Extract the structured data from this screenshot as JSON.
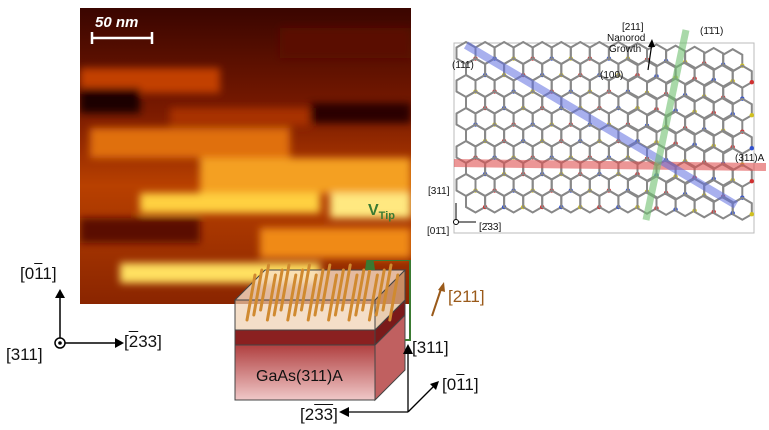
{
  "stm_image": {
    "scale_bar": "50 nm"
  },
  "lattice": {
    "growth_dir": "[211]",
    "growth_text_1": "Nanorod",
    "growth_text_2": "Growth",
    "plane_111": "(111)",
    "plane_1b1b1": "(1̄1̄1)",
    "plane_100": "(100)",
    "plane_311A": "(311)A",
    "axis_311": "[311]",
    "axis_233": "[2̄33]",
    "axis_011": "[01̄1]"
  },
  "left_axes": {
    "up": "[0",
    "up_bar": "1",
    "up_end": "1]",
    "right": "[",
    "right_bar": "2",
    "right_end": "33]",
    "out": "[311]"
  },
  "block": {
    "substrate": "GaAs(311)A",
    "vtip": "V",
    "vtip_sub": "Tip",
    "dir_211": "[211]",
    "axis_311": "[311]",
    "axis_011": "[0",
    "axis_011_bar": "1",
    "axis_011_end": "1]",
    "axis_233": "[2",
    "axis_233_bar": "33",
    "axis_233_end": "]"
  },
  "colors": {
    "growth_arrow": "#9a5a1a",
    "vtip_green": "#3a7a32"
  }
}
